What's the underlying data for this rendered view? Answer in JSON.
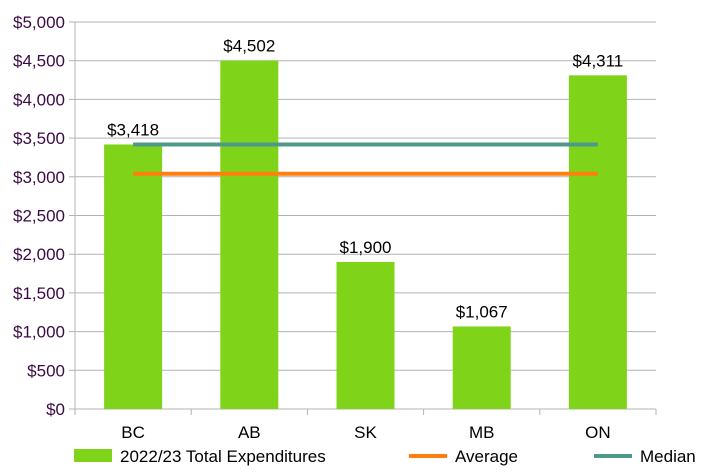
{
  "chart_data": {
    "type": "bar",
    "categories": [
      "BC",
      "AB",
      "SK",
      "MB",
      "ON"
    ],
    "series": [
      {
        "name": "2022/23 Total Expenditures",
        "type": "bar",
        "values": [
          3418,
          4502,
          1900,
          1067,
          4311
        ],
        "color": "#7fd41a"
      },
      {
        "name": "Average",
        "type": "line",
        "values": [
          3040,
          3040,
          3040,
          3040,
          3040
        ],
        "color": "#ff7f0e"
      },
      {
        "name": "Median",
        "type": "line",
        "values": [
          3418,
          3418,
          3418,
          3418,
          3418
        ],
        "color": "#4e9a8a"
      }
    ],
    "data_labels": [
      "$3,418",
      "$4,502",
      "$1,900",
      "$1,067",
      "$4,311"
    ],
    "y_ticks": [
      "$0",
      "$500",
      "$1,000",
      "$1,500",
      "$2,000",
      "$2,500",
      "$3,000",
      "$3,500",
      "$4,000",
      "$4,500",
      "$5,000"
    ],
    "ylim": [
      0,
      5000
    ],
    "grid": true,
    "legend_position": "bottom",
    "title": "",
    "xlabel": "",
    "ylabel": ""
  }
}
